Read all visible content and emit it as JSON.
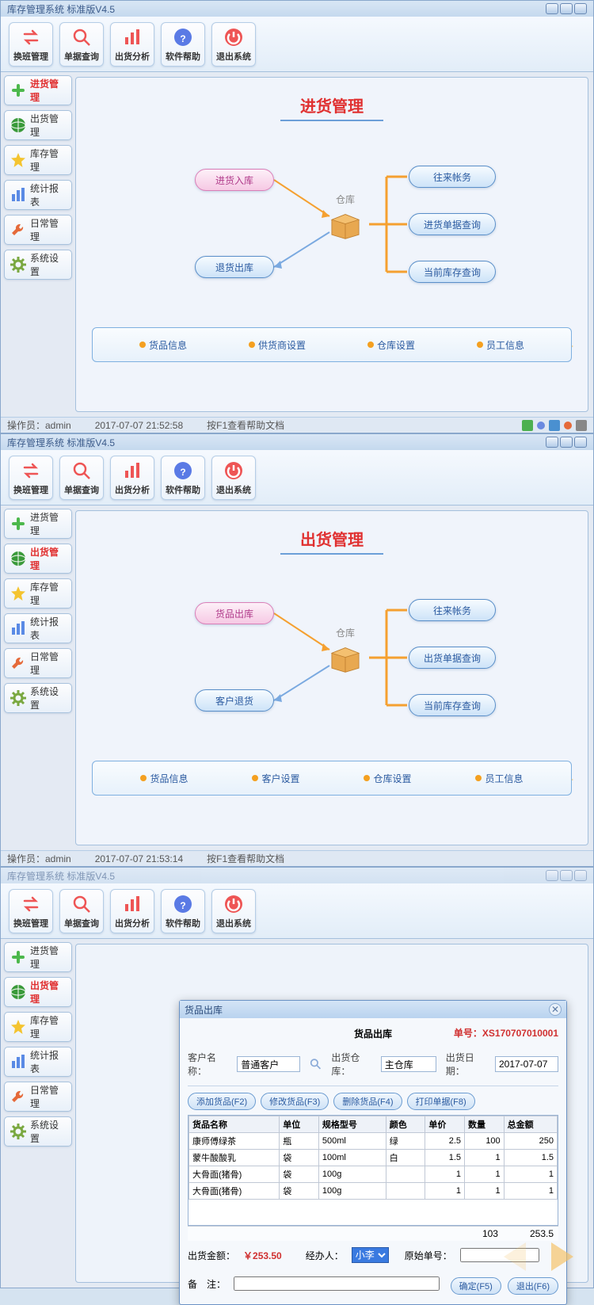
{
  "app_title": "库存管理系统 标准版V4.5",
  "toolbar": [
    {
      "icon": "swap",
      "label": "换班管理",
      "color": "#e55"
    },
    {
      "icon": "search",
      "label": "单据查询",
      "color": "#e55"
    },
    {
      "icon": "chart",
      "label": "出货分析",
      "color": "#e55"
    },
    {
      "icon": "help",
      "label": "软件帮助",
      "color": "#5a7ae5"
    },
    {
      "icon": "exit",
      "label": "退出系统",
      "color": "#e55"
    }
  ],
  "sidebar": [
    {
      "icon": "plus",
      "color": "#4cb84c",
      "label": "进货管理"
    },
    {
      "icon": "globe",
      "color": "#3a9a3a",
      "label": "出货管理"
    },
    {
      "icon": "star",
      "color": "#f4c430",
      "label": "库存管理"
    },
    {
      "icon": "bars",
      "color": "#5a8ae5",
      "label": "统计报表"
    },
    {
      "icon": "wrench",
      "color": "#e56a3a",
      "label": "日常管理"
    },
    {
      "icon": "gear",
      "color": "#7aa840",
      "label": "系统设置"
    }
  ],
  "screen1": {
    "title": "进货管理",
    "center_label": "仓库",
    "left_nodes": [
      "进货入库",
      "退货出库"
    ],
    "left_pink_index": 0,
    "right_nodes": [
      "往来帐务",
      "进货单据查询",
      "当前库存查询"
    ],
    "bottom_links": [
      "货品信息",
      "供货商设置",
      "仓库设置",
      "员工信息"
    ],
    "status_user": "操作员：admin",
    "status_time": "2017-07-07 21:52:58",
    "status_help": "按F1查看帮助文档"
  },
  "screen2": {
    "title": "出货管理",
    "center_label": "仓库",
    "left_nodes": [
      "货品出库",
      "客户退货"
    ],
    "left_pink_index": 0,
    "right_nodes": [
      "往来帐务",
      "出货单据查询",
      "当前库存查询"
    ],
    "bottom_links": [
      "货品信息",
      "客户设置",
      "仓库设置",
      "员工信息"
    ],
    "status_user": "操作员：admin",
    "status_time": "2017-07-07 21:53:14",
    "status_help": "按F1查看帮助文档"
  },
  "dialog": {
    "window_title": "货品出库",
    "heading": "货品出库",
    "serial_label": "单号：",
    "serial": "XS170707010001",
    "customer_label": "客户名称：",
    "customer_value": "普通客户",
    "warehouse_label": "出货仓库：",
    "warehouse_value": "主仓库",
    "date_label": "出货日期：",
    "date_value": "2017-07-07",
    "buttons": [
      "添加货品(F2)",
      "修改货品(F3)",
      "删除货品(F4)",
      "打印单据(F8)"
    ],
    "columns": [
      "货品名称",
      "单位",
      "规格型号",
      "颜色",
      "单价",
      "数量",
      "总金额"
    ],
    "rows": [
      [
        "康师傅绿茶",
        "瓶",
        "500ml",
        "绿",
        "2.5",
        "100",
        "250"
      ],
      [
        "蒙牛酸酸乳",
        "袋",
        "100ml",
        "白",
        "1.5",
        "1",
        "1.5"
      ],
      [
        "大骨面(猪骨)",
        "袋",
        "100g",
        "",
        "1",
        "1",
        "1"
      ],
      [
        "大骨面(猪骨)",
        "袋",
        "100g",
        "",
        "1",
        "1",
        "1"
      ]
    ],
    "total_qty": "103",
    "total_amount": "253.5",
    "amount_label": "出货金额：",
    "amount_value": "￥253.50",
    "handler_label": "经办人：",
    "handler_value": "小李",
    "orig_serial_label": "原始单号：",
    "remark_label": "备　注：",
    "ok": "确定(F5)",
    "cancel": "退出(F6)"
  },
  "colors": {
    "title_red": "#e03030",
    "node_blue": "#2a5aa0",
    "node_pink": "#b03a8a",
    "box_border": "#a5c0dd",
    "arrow_orange": "#f5b040"
  }
}
